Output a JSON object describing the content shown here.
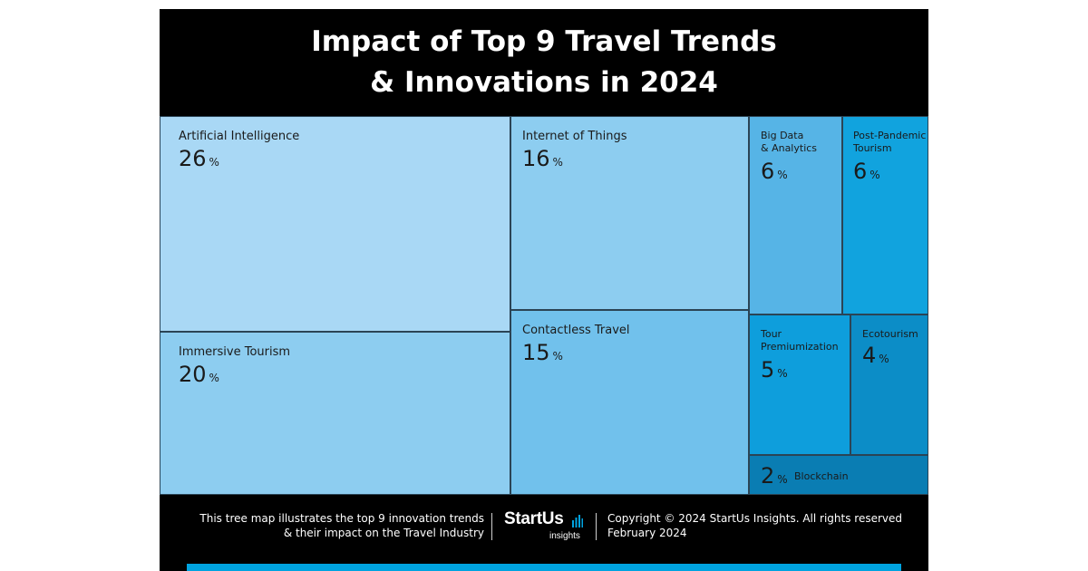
{
  "title": {
    "line1": "Impact of Top 9 Travel Trends",
    "line2": "& Innovations in 2024"
  },
  "chart_data": {
    "type": "treemap",
    "unit": "%",
    "items": [
      {
        "name": "Artificial Intelligence",
        "value": 26,
        "color": "#a9d8f5"
      },
      {
        "name": "Immersive Tourism",
        "value": 20,
        "color": "#8dcdf0"
      },
      {
        "name": "Internet of Things",
        "value": 16,
        "color": "#8dcdf0"
      },
      {
        "name": "Contactless Travel",
        "value": 15,
        "color": "#71c1ec"
      },
      {
        "name": "Big Data\n& Analytics",
        "value": 6,
        "color": "#56b4e6"
      },
      {
        "name": "Post-Pandemic\nTourism",
        "value": 6,
        "color": "#11a3de"
      },
      {
        "name": "Tour\nPremiumization",
        "value": 5,
        "color": "#0e9edc"
      },
      {
        "name": "Ecotourism",
        "value": 4,
        "color": "#0c8dc7"
      },
      {
        "name": "Blockchain",
        "value": 2,
        "color": "#0a7db3"
      }
    ]
  },
  "footer": {
    "desc_line1": "This tree map illustrates the top 9 innovation trends",
    "desc_line2": "& their impact on the Travel Industry",
    "logo_text": "StartUs",
    "logo_sub": "insights",
    "copyright": "Copyright © 2024 StartUs Insights. All rights reserved",
    "date": "February 2024",
    "bar_color": "#00a3e0"
  }
}
